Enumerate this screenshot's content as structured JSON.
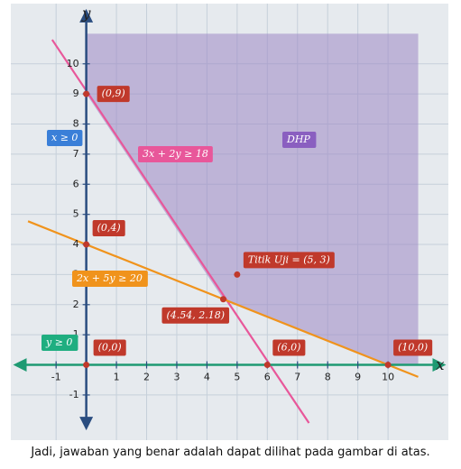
{
  "chart_data": {
    "type": "line",
    "x_label": "x",
    "y_label": "y",
    "xlim": [
      -2.5,
      12
    ],
    "ylim": [
      -2.5,
      12
    ],
    "xticks": [
      -1,
      1,
      2,
      3,
      4,
      5,
      6,
      7,
      8,
      9,
      10
    ],
    "yticks": [
      -1,
      1,
      2,
      3,
      4,
      5,
      6,
      7,
      8,
      9,
      10
    ],
    "grid": true,
    "series": [
      {
        "name": "3x + 2y ≥ 18",
        "color": "#e8579a",
        "x": [
          -1.13,
          7.38
        ],
        "values": [
          10.8,
          -1.93
        ]
      },
      {
        "name": "2x + 5y ≥ 20",
        "color": "#f0931c",
        "x": [
          -1.93,
          11
        ],
        "values": [
          4.77,
          -0.4
        ]
      },
      {
        "name": "x ≥ 0",
        "color": "#2a4d80",
        "x": [
          0,
          0
        ],
        "values": [
          -1.95,
          11.6
        ]
      },
      {
        "name": "y ≥ 0",
        "color": "#1e9a72",
        "x": [
          -2.2,
          11.7
        ],
        "values": [
          0,
          0
        ]
      }
    ],
    "region": {
      "name": "DHP",
      "color": "#9d86c4",
      "x": [
        0,
        0,
        11,
        11,
        10,
        4.54,
        0
      ],
      "values": [
        9,
        11,
        11,
        0,
        0,
        2.18,
        9
      ]
    },
    "points": [
      {
        "label": "(0,9)",
        "x": 0,
        "y": 9
      },
      {
        "label": "(0,4)",
        "x": 0,
        "y": 4
      },
      {
        "label": "(4.54, 2.18)",
        "x": 4.54,
        "y": 2.18
      },
      {
        "label": "(6,0)",
        "x": 6,
        "y": 0
      },
      {
        "label": "(10,0)",
        "x": 10,
        "y": 0
      },
      {
        "label": "(0,0)",
        "x": 0,
        "y": 0
      },
      {
        "label": "Titik Uji = (5, 3)",
        "x": 5,
        "y": 3
      }
    ]
  },
  "caption": "Jadi, jawaban yang benar adalah dapat dilihat pada gambar di atas."
}
